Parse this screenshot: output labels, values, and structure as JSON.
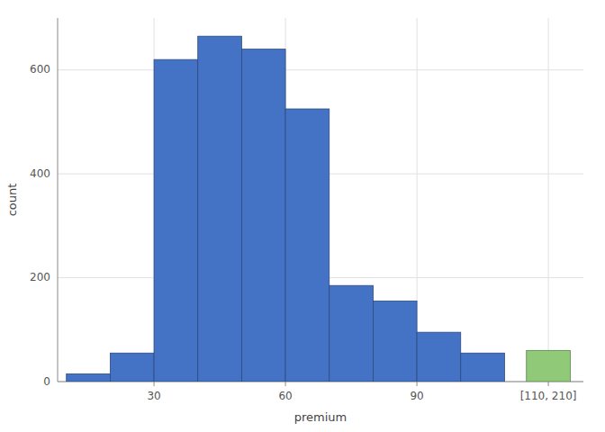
{
  "chart_data": {
    "type": "histogram",
    "xlabel": "premium",
    "ylabel": "count",
    "series": [
      {
        "color": "#4472c4",
        "bins": [
          10,
          20,
          30,
          40,
          50,
          60,
          70,
          80,
          90,
          100,
          110
        ],
        "values": [
          15,
          55,
          620,
          665,
          640,
          525,
          185,
          155,
          95,
          55
        ]
      },
      {
        "color": "#90c978",
        "bins": [
          115,
          125
        ],
        "values": [
          60
        ]
      }
    ],
    "xlim": [
      8,
      128
    ],
    "xticks": [
      30,
      60,
      90,
      {
        "value": 120,
        "label": "[110, 210]"
      }
    ],
    "ylim": [
      0,
      700
    ],
    "yticks": [
      0,
      200,
      400,
      600
    ],
    "grid": true
  }
}
